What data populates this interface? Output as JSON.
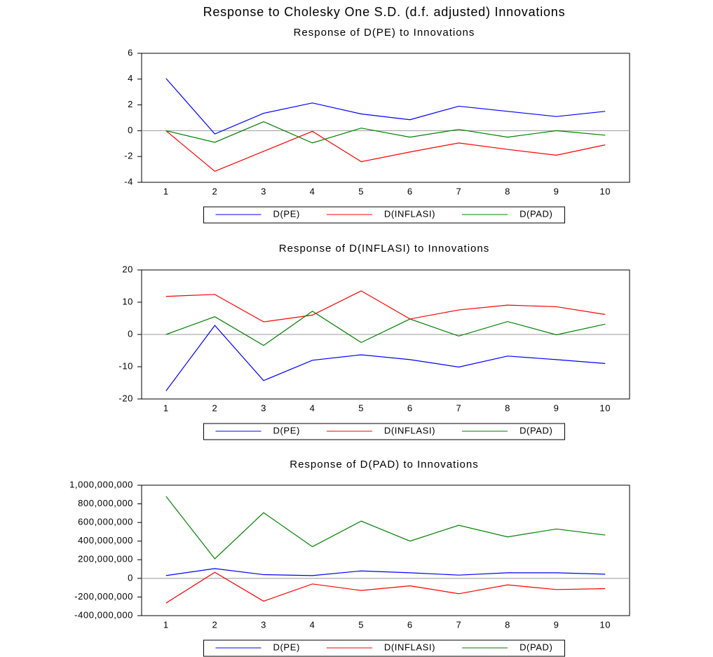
{
  "title": "Response to Cholesky One S.D. (d.f. adjusted) Innovations",
  "chart_data": [
    {
      "type": "line",
      "title": "Response of D(PE) to Innovations",
      "categories": [
        "1",
        "2",
        "3",
        "4",
        "5",
        "6",
        "7",
        "8",
        "9",
        "10"
      ],
      "series": [
        {
          "name": "D(PE)",
          "color": "#0000ff",
          "values": [
            4.05,
            -0.25,
            1.35,
            2.15,
            1.3,
            0.85,
            1.9,
            1.5,
            1.1,
            1.5
          ]
        },
        {
          "name": "D(INFLASI)",
          "color": "#ff0000",
          "values": [
            0,
            -3.15,
            -1.6,
            -0.05,
            -2.4,
            -1.65,
            -0.95,
            -1.45,
            -1.9,
            -1.1
          ]
        },
        {
          "name": "D(PAD)",
          "color": "#008000",
          "values": [
            0,
            -0.9,
            0.7,
            -0.95,
            0.2,
            -0.5,
            0.1,
            -0.5,
            0.0,
            -0.35
          ]
        }
      ],
      "ylim": [
        -4,
        6
      ],
      "yticks": [
        -4,
        -2,
        0,
        2,
        4,
        6
      ],
      "legend": "bottom"
    },
    {
      "type": "line",
      "title": "Response of D(INFLASI) to Innovations",
      "categories": [
        "1",
        "2",
        "3",
        "4",
        "5",
        "6",
        "7",
        "8",
        "9",
        "10"
      ],
      "series": [
        {
          "name": "D(PE)",
          "color": "#0000ff",
          "values": [
            -17.5,
            2.8,
            -14.3,
            -8.0,
            -6.3,
            -7.8,
            -10.1,
            -6.7,
            -7.8,
            -9.0
          ]
        },
        {
          "name": "D(INFLASI)",
          "color": "#ff0000",
          "values": [
            11.8,
            12.4,
            3.9,
            6.0,
            13.5,
            4.8,
            7.6,
            9.1,
            8.6,
            6.2
          ]
        },
        {
          "name": "D(PAD)",
          "color": "#008000",
          "values": [
            0,
            5.5,
            -3.4,
            7.2,
            -2.5,
            4.8,
            -0.5,
            4.0,
            -0.1,
            3.2
          ]
        }
      ],
      "ylim": [
        -20,
        20
      ],
      "yticks": [
        -20,
        -10,
        0,
        10,
        20
      ],
      "legend": "bottom"
    },
    {
      "type": "line",
      "title": "Response of D(PAD) to Innovations",
      "categories": [
        "1",
        "2",
        "3",
        "4",
        "5",
        "6",
        "7",
        "8",
        "9",
        "10"
      ],
      "series": [
        {
          "name": "D(PE)",
          "color": "#0000ff",
          "values": [
            30000000,
            105000000,
            40000000,
            30000000,
            80000000,
            60000000,
            35000000,
            60000000,
            60000000,
            45000000
          ]
        },
        {
          "name": "D(INFLASI)",
          "color": "#ff0000",
          "values": [
            -265000000,
            65000000,
            -245000000,
            -60000000,
            -130000000,
            -80000000,
            -165000000,
            -70000000,
            -120000000,
            -110000000
          ]
        },
        {
          "name": "D(PAD)",
          "color": "#008000",
          "values": [
            880000000,
            210000000,
            705000000,
            340000000,
            615000000,
            400000000,
            570000000,
            445000000,
            530000000,
            465000000
          ]
        }
      ],
      "ylim": [
        -400000000,
        1000000000
      ],
      "yticks": [
        {
          "value": -400000000,
          "label": "-400,000,000"
        },
        {
          "value": -200000000,
          "label": "-200,000,000"
        },
        0,
        {
          "value": 200000000,
          "label": "200,000,000"
        },
        {
          "value": 400000000,
          "label": "400,000,000"
        },
        {
          "value": 600000000,
          "label": "600,000,000"
        },
        {
          "value": 800000000,
          "label": "800,000,000"
        },
        {
          "value": 1000000000,
          "label": "1,000,000,000"
        }
      ],
      "legend": "bottom"
    }
  ]
}
